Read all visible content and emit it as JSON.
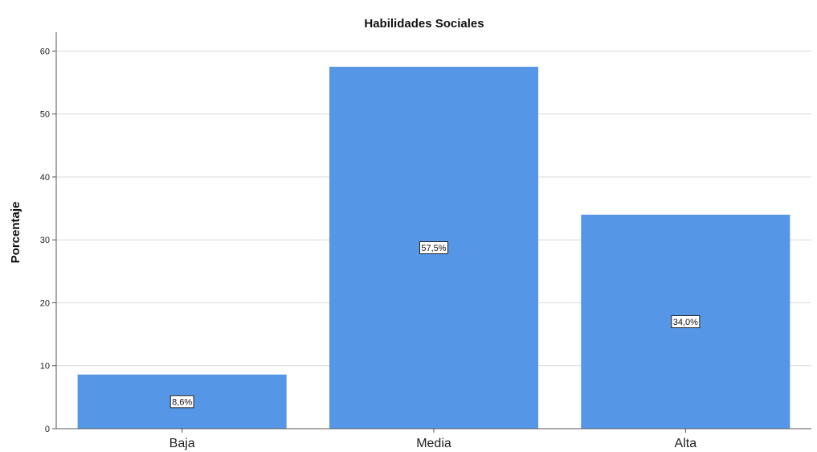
{
  "chart_data": {
    "type": "bar",
    "title": "Habilidades Sociales",
    "xlabel": "",
    "ylabel": "Porcentaje",
    "categories": [
      "Baja",
      "Media",
      "Alta"
    ],
    "values": [
      8.6,
      57.5,
      34.0
    ],
    "data_labels": [
      "8,6%",
      "57,5%",
      "34,0%"
    ],
    "ylim": [
      0,
      63
    ],
    "yticks": [
      0,
      10,
      20,
      30,
      40,
      50,
      60
    ],
    "grid": true,
    "legend": "none",
    "bar_color": "#5596e6"
  }
}
